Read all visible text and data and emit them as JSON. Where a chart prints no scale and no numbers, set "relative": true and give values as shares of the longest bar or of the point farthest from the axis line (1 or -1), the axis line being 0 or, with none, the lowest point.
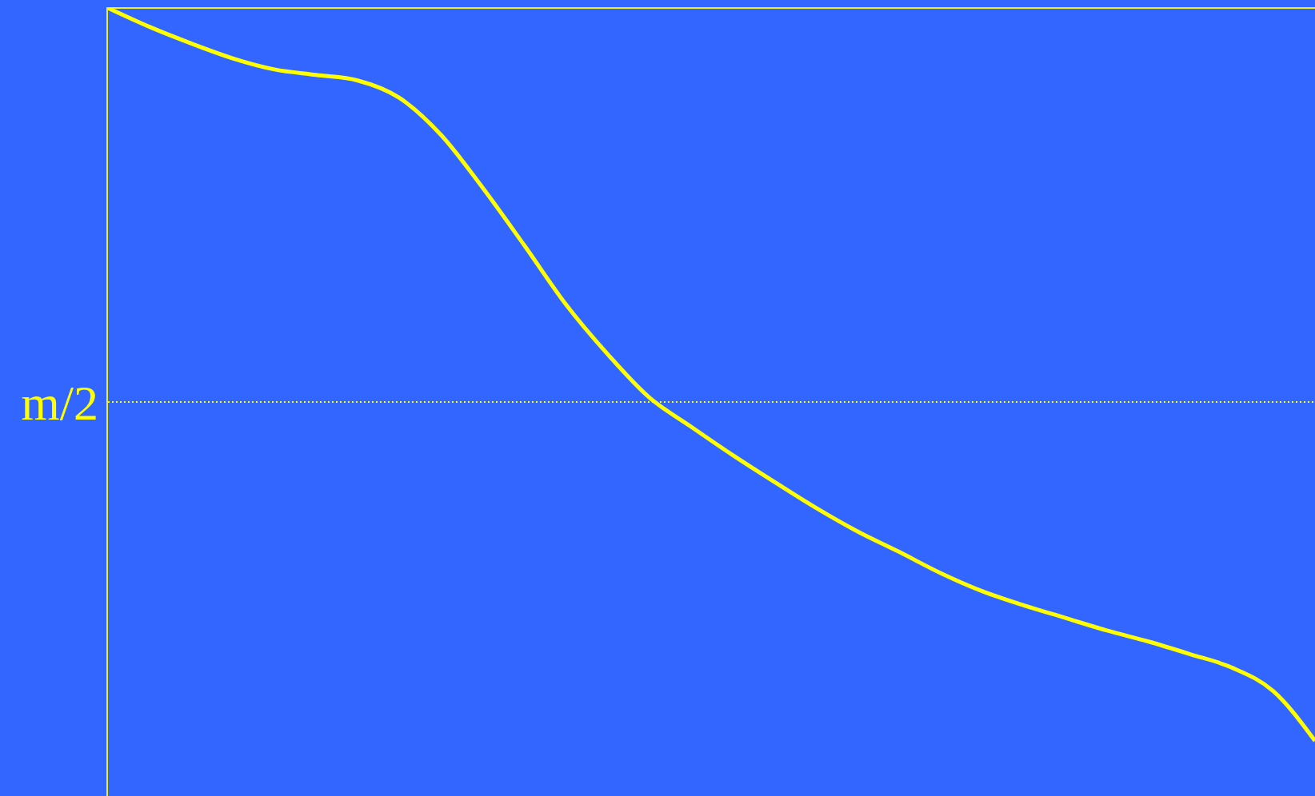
{
  "chart_data": {
    "type": "line",
    "relative": true,
    "categories": [
      null,
      null,
      null,
      null,
      null,
      null,
      null,
      null,
      null,
      null,
      null,
      null,
      null,
      null,
      null,
      null,
      null,
      null,
      null,
      null,
      null,
      null,
      null,
      null,
      null,
      null,
      null,
      null,
      null,
      null
    ],
    "series": [
      {
        "color": "#ffff00",
        "values": [
          1,
          0.976,
          0.955,
          0.936,
          0.922,
          0.915,
          0.908,
          0.886,
          0.839,
          0.772,
          0.699,
          0.624,
          0.561,
          0.506,
          0.469,
          0.433,
          0.399,
          0.366,
          0.336,
          0.31,
          0.283,
          0.26,
          0.242,
          0.226,
          0.21,
          0.196,
          0.18,
          0.163,
          0.133,
          0.07
        ]
      }
    ],
    "ref_lines": [
      {
        "axis": "y",
        "value": 0.5,
        "label": "m/2",
        "color": "#ffff00",
        "line_style": "dotted"
      }
    ],
    "marker": "none",
    "line_style": "solid"
  }
}
